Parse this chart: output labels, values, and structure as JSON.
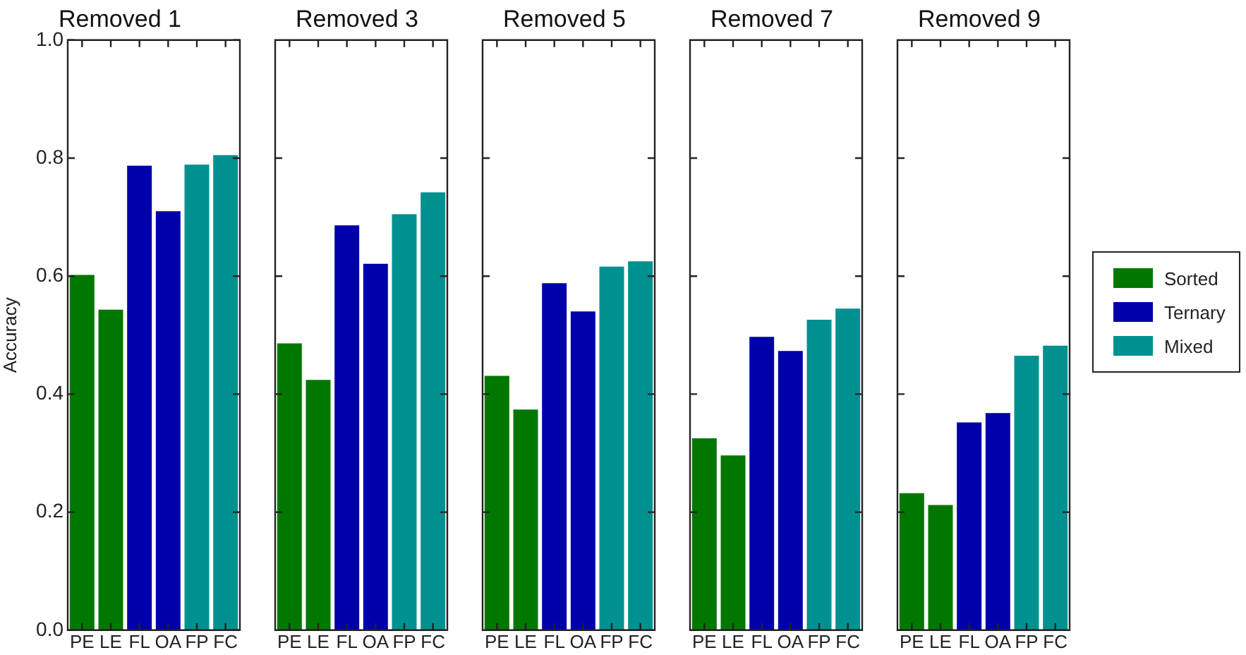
{
  "chart_data": [
    {
      "type": "bar",
      "title": "Removed 1",
      "ylabel": "Accuracy",
      "categories": [
        "PE",
        "LE",
        "FL",
        "OA",
        "FP",
        "FC"
      ],
      "ylim": [
        0,
        1
      ],
      "yticks": [
        {
          "value": 0,
          "label": "0.0"
        },
        0.2,
        0.4,
        0.6,
        0.8,
        {
          "value": 1,
          "label": "1.0"
        }
      ],
      "grid": false,
      "series": [
        {
          "color": "#007700",
          "values": [
            0.602,
            0.543,
            null,
            null,
            null,
            null
          ]
        },
        {
          "color": "#0000aa",
          "values": [
            null,
            null,
            0.787,
            0.71,
            null,
            null
          ]
        },
        {
          "color": "#009090",
          "values": [
            null,
            null,
            null,
            null,
            0.789,
            0.805
          ]
        }
      ]
    },
    {
      "type": "bar",
      "title": "Removed 3",
      "categories": [
        "PE",
        "LE",
        "FL",
        "OA",
        "FP",
        "FC"
      ],
      "ylim": [
        0,
        1
      ],
      "yticks": [
        0.2,
        0.4,
        0.6,
        0.8
      ],
      "grid": false,
      "tick_labels": "x",
      "series": [
        {
          "color": "#007700",
          "values": [
            0.486,
            0.424,
            null,
            null,
            null,
            null
          ]
        },
        {
          "color": "#0000aa",
          "values": [
            null,
            null,
            0.686,
            0.621,
            null,
            null
          ]
        },
        {
          "color": "#009090",
          "values": [
            null,
            null,
            null,
            null,
            0.705,
            0.742
          ]
        }
      ]
    },
    {
      "type": "bar",
      "title": "Removed 5",
      "categories": [
        "PE",
        "LE",
        "FL",
        "OA",
        "FP",
        "FC"
      ],
      "ylim": [
        0,
        1
      ],
      "yticks": [
        0.2,
        0.4,
        0.6,
        0.8
      ],
      "grid": false,
      "tick_labels": "x",
      "series": [
        {
          "color": "#007700",
          "values": [
            0.431,
            0.374,
            null,
            null,
            null,
            null
          ]
        },
        {
          "color": "#0000aa",
          "values": [
            null,
            null,
            0.588,
            0.54,
            null,
            null
          ]
        },
        {
          "color": "#009090",
          "values": [
            null,
            null,
            null,
            null,
            0.616,
            0.625
          ]
        }
      ]
    },
    {
      "type": "bar",
      "title": "Removed 7",
      "categories": [
        "PE",
        "LE",
        "FL",
        "OA",
        "FP",
        "FC"
      ],
      "ylim": [
        0,
        1
      ],
      "yticks": [
        0.2,
        0.4,
        0.6,
        0.8
      ],
      "grid": false,
      "tick_labels": "x",
      "series": [
        {
          "color": "#007700",
          "values": [
            0.325,
            0.296,
            null,
            null,
            null,
            null
          ]
        },
        {
          "color": "#0000aa",
          "values": [
            null,
            null,
            0.497,
            0.473,
            null,
            null
          ]
        },
        {
          "color": "#009090",
          "values": [
            null,
            null,
            null,
            null,
            0.526,
            0.545
          ]
        }
      ]
    },
    {
      "type": "bar",
      "title": "Removed 9",
      "categories": [
        "PE",
        "LE",
        "FL",
        "OA",
        "FP",
        "FC"
      ],
      "ylim": [
        0,
        1
      ],
      "yticks": [
        0.2,
        0.4,
        0.6,
        0.8
      ],
      "grid": false,
      "tick_labels": "x",
      "legend": "right",
      "series": [
        {
          "name": "Sorted",
          "color": "#007700",
          "values": [
            0.232,
            0.212,
            null,
            null,
            null,
            null
          ]
        },
        {
          "name": "Ternary",
          "color": "#0000aa",
          "values": [
            null,
            null,
            0.352,
            0.368,
            null,
            null
          ]
        },
        {
          "name": "Mixed",
          "color": "#009090",
          "values": [
            null,
            null,
            null,
            null,
            0.465,
            0.482
          ]
        }
      ]
    }
  ]
}
